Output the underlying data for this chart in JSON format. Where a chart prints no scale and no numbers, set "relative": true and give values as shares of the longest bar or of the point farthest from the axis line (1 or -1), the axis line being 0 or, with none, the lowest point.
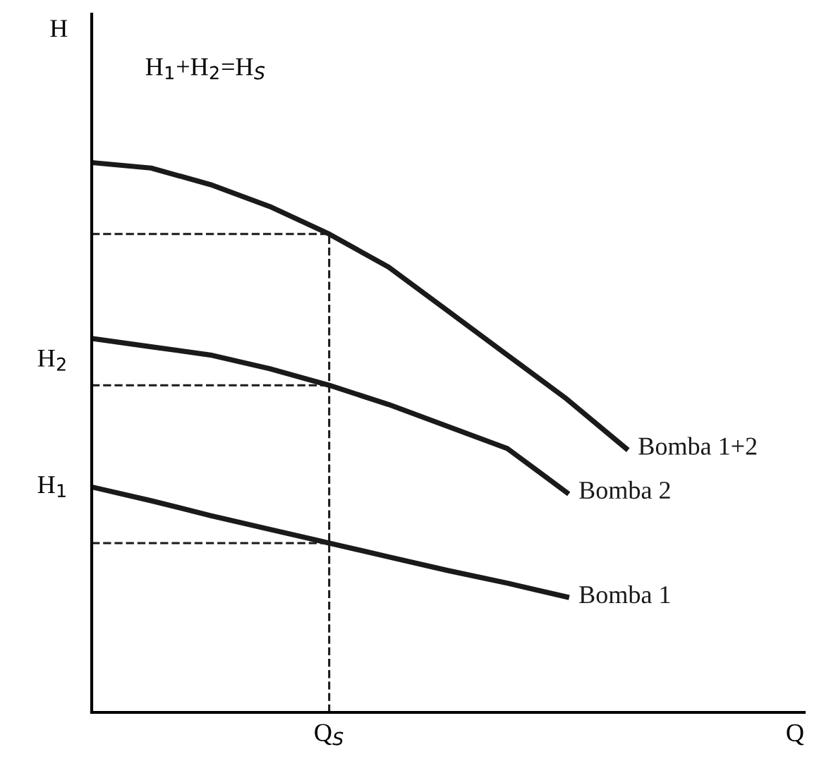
{
  "chart_data": {
    "type": "line",
    "relative": true,
    "xlabel": "Q",
    "categories": [
      null,
      null,
      null,
      null,
      null,
      null,
      null,
      null,
      null,
      null,
      null,
      null,
      null
    ],
    "series": [
      {
        "name": "Bomba 1+2",
        "color": "#1a1a1a",
        "values": [
          1,
          0.99,
          0.96,
          0.92,
          0.87,
          0.81,
          0.73,
          0.65,
          0.57,
          0.48,
          null,
          null,
          null
        ]
      },
      {
        "name": "Bomba 2",
        "color": "#1a1a1a",
        "values": [
          0.68,
          0.665,
          0.65,
          0.625,
          0.595,
          0.56,
          0.52,
          0.48,
          0.4,
          null,
          null,
          null,
          null
        ]
      },
      {
        "name": "Bomba 1",
        "color": "#1a1a1a",
        "values": [
          0.41,
          0.385,
          0.358,
          0.333,
          0.308,
          0.283,
          0.258,
          0.235,
          0.21,
          null,
          null,
          null,
          null
        ]
      }
    ],
    "ref_lines": [
      {
        "axis": "y",
        "value": 0.87,
        "line_style": "dashed",
        "color": "#1a1a1a"
      },
      {
        "axis": "y",
        "value": 0.595,
        "line_style": "dashed",
        "color": "#1a1a1a"
      },
      {
        "axis": "y",
        "value": 0.308,
        "line_style": "dashed",
        "color": "#1a1a1a"
      }
    ],
    "annotations": [
      "H",
      "H$_{1}$+H$_{2}$=H$_{S}$",
      "H$_{2}$",
      "H$_{1}$",
      "Q$_{S}$"
    ],
    "line_style": "solid",
    "marker": "none",
    "legend": false,
    "grid": false
  }
}
